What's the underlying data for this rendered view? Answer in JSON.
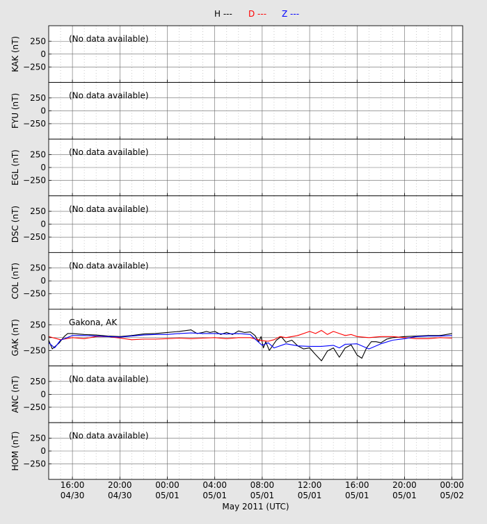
{
  "legend": [
    {
      "label": "H ---",
      "color": "#000000"
    },
    {
      "label": "D ---",
      "color": "#ff0000"
    },
    {
      "label": "Z ---",
      "color": "#0000ff"
    }
  ],
  "no_data_text": "(No data available)",
  "xlabel": "May 2011 (UTC)",
  "x_ticks": [
    {
      "hour": 16,
      "time": "16:00",
      "date": "04/30"
    },
    {
      "hour": 20,
      "time": "20:00",
      "date": "04/30"
    },
    {
      "hour": 24,
      "time": "00:00",
      "date": "05/01"
    },
    {
      "hour": 28,
      "time": "04:00",
      "date": "05/01"
    },
    {
      "hour": 32,
      "time": "08:00",
      "date": "05/01"
    },
    {
      "hour": 36,
      "time": "12:00",
      "date": "05/01"
    },
    {
      "hour": 40,
      "time": "16:00",
      "date": "05/01"
    },
    {
      "hour": 44,
      "time": "20:00",
      "date": "05/01"
    },
    {
      "hour": 48,
      "time": "00:00",
      "date": "05/02"
    }
  ],
  "chart_data": {
    "type": "line",
    "xlabel": "May 2011 (UTC)",
    "x_unit": "hours since 2011-04-30 00:00 UTC",
    "xlim": [
      14.0,
      48.9
    ],
    "ylim": [
      -550,
      550
    ],
    "y_ticks": [
      250,
      0,
      -250
    ],
    "y_tick_labels": [
      "250",
      "0",
      "−250"
    ],
    "grid": true,
    "legend_position": "top-center",
    "panels": [
      {
        "station": "KAK",
        "ylabel": "KAK (nT)",
        "has_data": false
      },
      {
        "station": "FYU",
        "ylabel": "FYU (nT)",
        "has_data": false
      },
      {
        "station": "EGL",
        "ylabel": "EGL (nT)",
        "has_data": false
      },
      {
        "station": "DSC",
        "ylabel": "DSC (nT)",
        "has_data": false
      },
      {
        "station": "COL",
        "ylabel": "COL (nT)",
        "has_data": false
      },
      {
        "station": "GAK",
        "ylabel": "GAK (nT)",
        "has_data": true,
        "label": "Gakona, AK",
        "series": [
          {
            "name": "H",
            "color": "#000000",
            "x": [
              14.0,
              14.3,
              14.6,
              14.9,
              15.3,
              15.6,
              16.0,
              17.0,
              18.0,
              19.0,
              20.0,
              21.0,
              22.0,
              23.0,
              24.0,
              25.0,
              26.0,
              26.5,
              27.0,
              27.3,
              27.6,
              28.0,
              28.5,
              29.0,
              29.5,
              30.0,
              30.5,
              31.0,
              31.4,
              31.7,
              31.9,
              32.1,
              32.3,
              32.6,
              32.9,
              33.2,
              33.6,
              34.0,
              34.5,
              35.0,
              35.5,
              36.0,
              36.5,
              37.0,
              37.5,
              38.0,
              38.5,
              39.0,
              39.5,
              40.0,
              40.4,
              40.8,
              41.2,
              41.6,
              42.0,
              42.5,
              43.0,
              44.0,
              45.0,
              46.0,
              47.0,
              48.0
            ],
            "y": [
              -50,
              -220,
              -160,
              -100,
              20,
              80,
              80,
              60,
              50,
              30,
              20,
              40,
              70,
              80,
              100,
              120,
              150,
              80,
              100,
              120,
              100,
              120,
              60,
              100,
              60,
              130,
              100,
              110,
              40,
              -80,
              20,
              -200,
              -80,
              -250,
              -150,
              -50,
              20,
              -90,
              -50,
              -160,
              -220,
              -200,
              -330,
              -450,
              -260,
              -200,
              -380,
              -200,
              -140,
              -340,
              -400,
              -200,
              -80,
              -80,
              -100,
              -30,
              0,
              20,
              30,
              40,
              40,
              80
            ]
          },
          {
            "name": "D",
            "color": "#ff0000",
            "x": [
              14.0,
              15.0,
              16.0,
              17.0,
              18.0,
              19.0,
              20.0,
              21.0,
              22.0,
              23.0,
              24.0,
              25.0,
              26.0,
              27.0,
              28.0,
              29.0,
              30.0,
              31.0,
              32.0,
              32.5,
              33.0,
              33.5,
              34.0,
              35.0,
              36.0,
              36.5,
              37.0,
              37.5,
              38.0,
              38.5,
              39.0,
              39.5,
              40.0,
              41.0,
              42.0,
              43.0,
              44.0,
              45.0,
              46.0,
              47.0,
              48.0
            ],
            "y": [
              20,
              -40,
              0,
              -20,
              20,
              20,
              -10,
              -40,
              -30,
              -30,
              -20,
              -10,
              -20,
              -10,
              0,
              -20,
              0,
              0,
              -60,
              -70,
              -40,
              20,
              0,
              40,
              120,
              80,
              140,
              60,
              120,
              80,
              40,
              60,
              20,
              0,
              20,
              20,
              0,
              -20,
              -20,
              0,
              -10
            ]
          },
          {
            "name": "Z",
            "color": "#0000ff",
            "x": [
              14.0,
              14.5,
              15.0,
              16.0,
              17.0,
              18.0,
              19.0,
              20.0,
              21.0,
              22.0,
              23.0,
              24.0,
              25.0,
              26.0,
              27.0,
              28.0,
              29.0,
              30.0,
              31.0,
              31.5,
              32.0,
              32.5,
              33.0,
              34.0,
              35.0,
              36.0,
              37.0,
              38.0,
              38.5,
              39.0,
              40.0,
              41.0,
              42.0,
              43.0,
              44.0,
              45.0,
              46.0,
              47.0,
              48.0
            ],
            "y": [
              -100,
              -200,
              -50,
              40,
              40,
              30,
              20,
              10,
              30,
              50,
              60,
              60,
              80,
              90,
              80,
              80,
              70,
              80,
              60,
              -50,
              -150,
              -100,
              -200,
              -120,
              -160,
              -170,
              -170,
              -150,
              -200,
              -130,
              -120,
              -220,
              -120,
              -50,
              -20,
              20,
              30,
              30,
              40
            ]
          }
        ]
      },
      {
        "station": "ANC",
        "ylabel": "ANC (nT)",
        "has_data": false
      },
      {
        "station": "HOM",
        "ylabel": "HOM (nT)",
        "has_data": false
      }
    ]
  }
}
